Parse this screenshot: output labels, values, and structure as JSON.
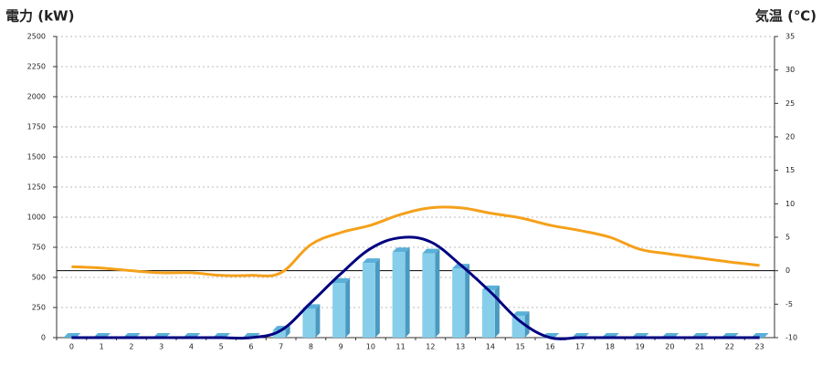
{
  "chart_data": {
    "type": "bar-line",
    "y_title": "電力 (kW)",
    "y2_title": "気温 (℃)",
    "y_title_color": "#1a6fc4",
    "y2_title_color": "#f08a24",
    "categories": [
      "0",
      "1",
      "2",
      "3",
      "4",
      "5",
      "6",
      "7",
      "8",
      "9",
      "10",
      "11",
      "12",
      "13",
      "14",
      "15",
      "16",
      "17",
      "18",
      "19",
      "20",
      "21",
      "22",
      "23"
    ],
    "ylim": [
      0,
      2500
    ],
    "yticks": [
      0,
      250,
      500,
      750,
      1000,
      1250,
      1500,
      1750,
      2000,
      2250,
      2500
    ],
    "y2lim": [
      -10,
      35
    ],
    "y2ticks": [
      -10,
      -5,
      0,
      5,
      10,
      15,
      20,
      25,
      30,
      35
    ],
    "grid": true,
    "y2_zero_line": true,
    "series": [
      {
        "kind": "bar",
        "color": "#87ceeb",
        "values": [
          0,
          0,
          0,
          0,
          0,
          0,
          0,
          60,
          240,
          455,
          620,
          710,
          700,
          575,
          395,
          180,
          0,
          0,
          0,
          0,
          0,
          0,
          0,
          0
        ]
      },
      {
        "kind": "line",
        "color": "#000080",
        "values": [
          0,
          0,
          0,
          0,
          0,
          0,
          0,
          60,
          290,
          530,
          740,
          830,
          795,
          605,
          380,
          135,
          0,
          0,
          0,
          0,
          0,
          0,
          0,
          0
        ]
      },
      {
        "kind": "line",
        "color": "#f5a01a",
        "axis": "y2",
        "values": [
          0.6,
          0.4,
          0,
          -0.3,
          -0.3,
          -0.7,
          -0.7,
          -0.3,
          3.9,
          5.7,
          6.8,
          8.4,
          9.4,
          9.4,
          8.6,
          7.9,
          6.8,
          6,
          5,
          3.2,
          2.5,
          1.9,
          1.3,
          0.8
        ]
      }
    ]
  }
}
